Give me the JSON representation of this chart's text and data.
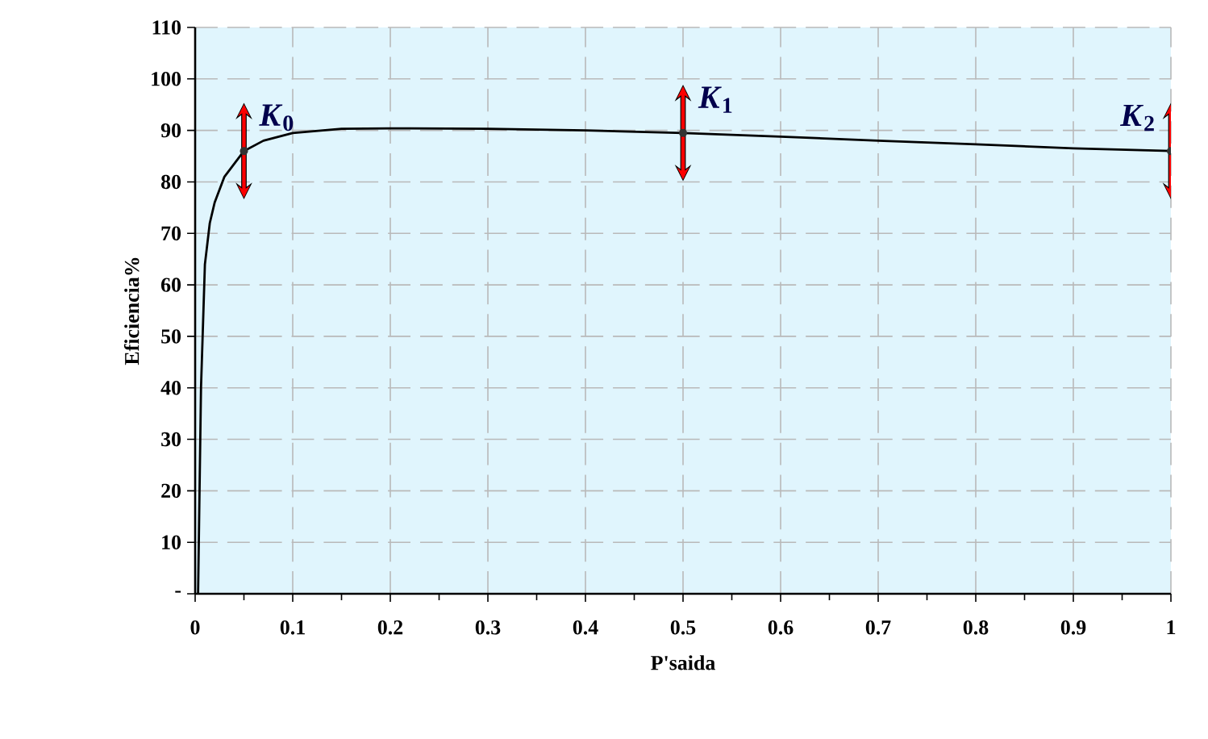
{
  "chart_data": {
    "type": "line",
    "xlabel": "P'saida",
    "ylabel": "Eficiencia%",
    "x": [
      0.003,
      0.006,
      0.01,
      0.015,
      0.02,
      0.03,
      0.05,
      0.07,
      0.1,
      0.15,
      0.2,
      0.3,
      0.4,
      0.5,
      0.6,
      0.7,
      0.8,
      0.9,
      1.0
    ],
    "values": [
      0,
      40,
      64,
      72,
      76,
      81,
      86,
      88,
      89.5,
      90.3,
      90.4,
      90.3,
      90,
      89.5,
      88.8,
      88,
      87.3,
      86.5,
      86
    ],
    "color": "#000000",
    "xlim": [
      0,
      1
    ],
    "ylim": [
      0,
      110
    ],
    "xticks": [
      0,
      0.1,
      0.2,
      0.3,
      0.4,
      0.5,
      0.6,
      0.7,
      0.8,
      0.9,
      1
    ],
    "yticks": [
      {
        "value": 0,
        "label": "-"
      },
      10,
      20,
      30,
      40,
      50,
      60,
      70,
      80,
      90,
      100,
      110
    ],
    "grid": true,
    "line_style": "solid",
    "annotations": [
      {
        "text": "*K*$_{0}$",
        "x": 0.05,
        "y": 86
      },
      {
        "text": "*K*$_{1}$",
        "x": 0.5,
        "y": 89.5
      },
      {
        "text": "*K*$_{2}$",
        "x": 1,
        "y": 86
      }
    ]
  }
}
